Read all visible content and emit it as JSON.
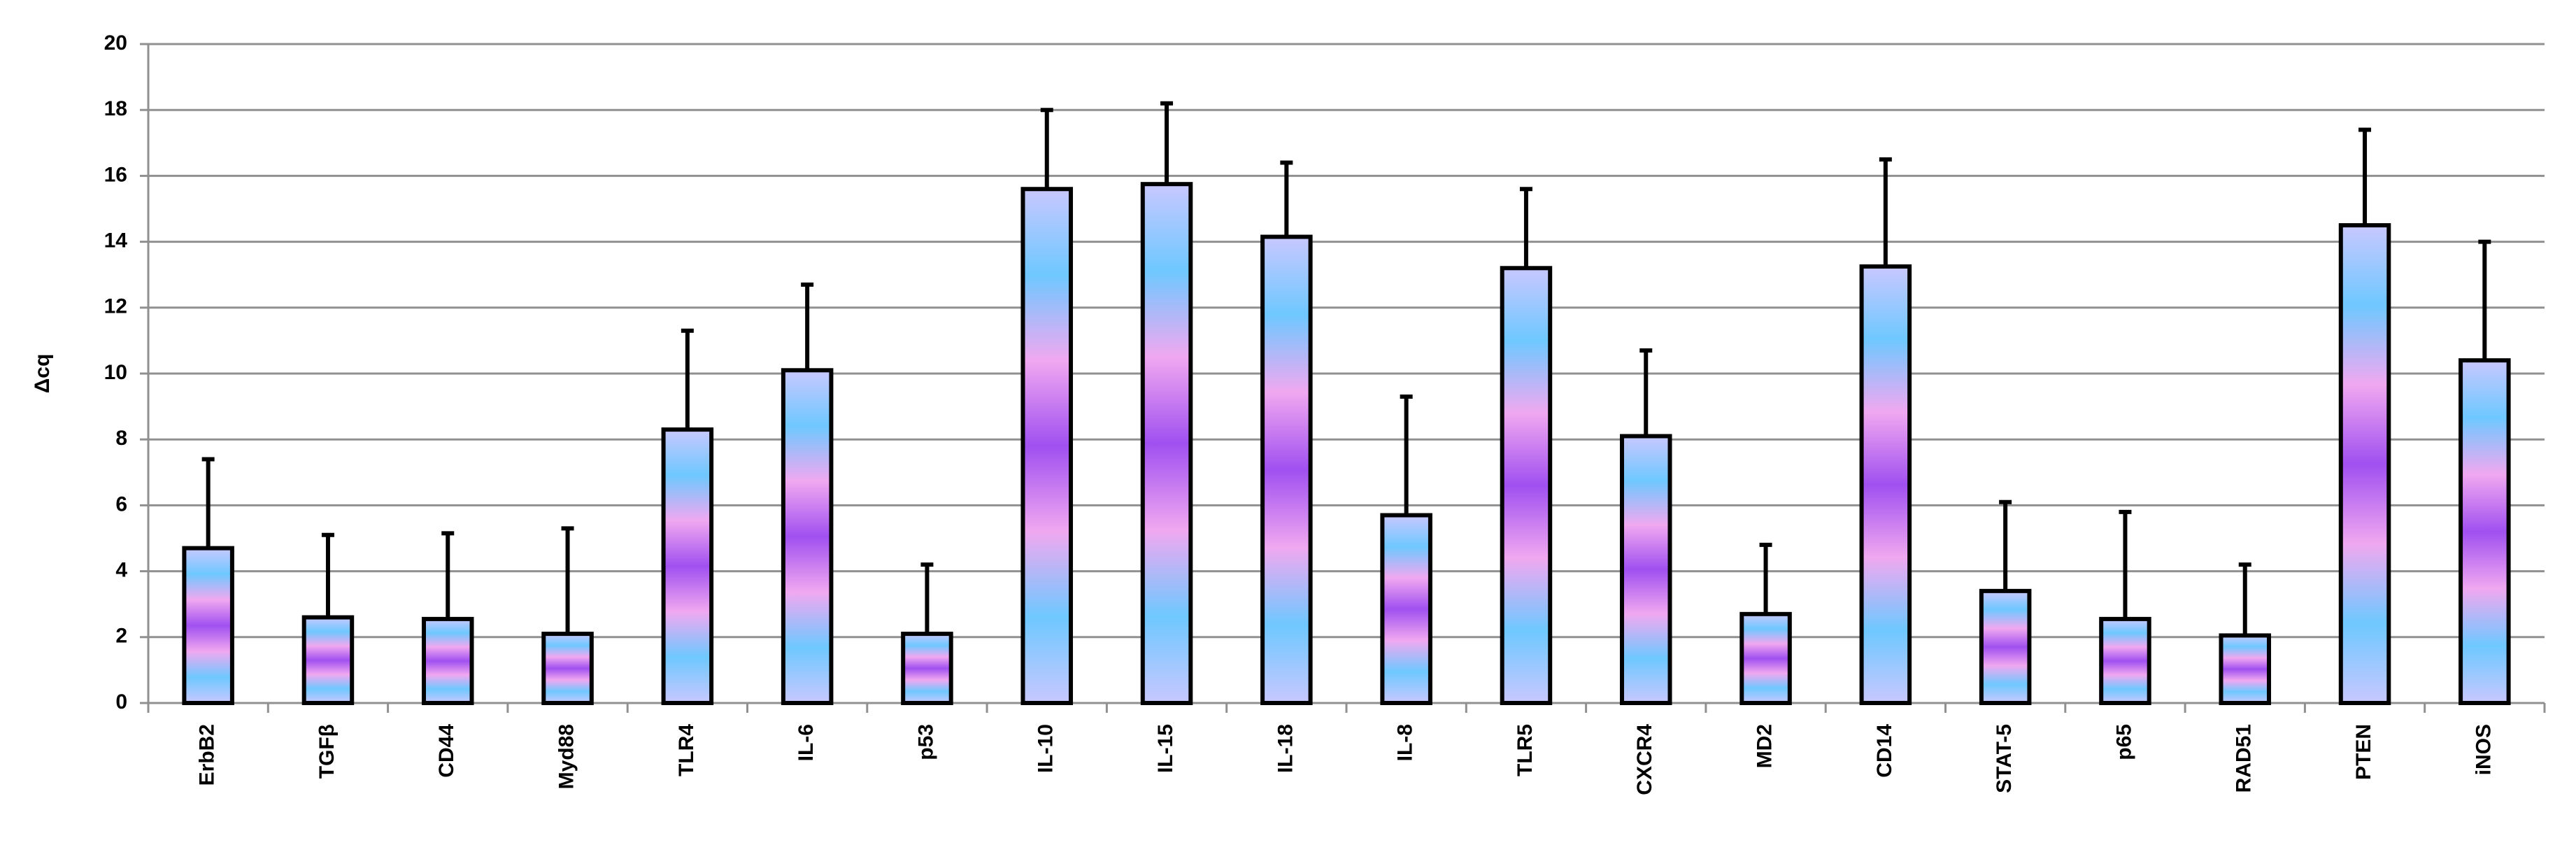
{
  "chart_data": {
    "type": "bar",
    "y_label": "Δcq",
    "categories": [
      "ErbB2",
      "TGFβ",
      "CD44",
      "Myd88",
      "TLR4",
      "IL-6",
      "p53",
      "IL-10",
      "IL-15",
      "IL-18",
      "IL-8",
      "TLR5",
      "CXCR4",
      "MD2",
      "CD14",
      "STAT-5",
      "p65",
      "RAD51",
      "PTEN",
      "iNOS"
    ],
    "values": [
      4.7,
      2.6,
      2.55,
      2.1,
      8.3,
      10.1,
      2.1,
      15.6,
      15.75,
      14.15,
      5.7,
      13.2,
      8.1,
      2.7,
      13.25,
      3.4,
      2.55,
      2.05,
      14.5,
      10.4
    ],
    "errors": [
      2.7,
      2.5,
      2.6,
      3.2,
      3.0,
      2.6,
      2.1,
      2.4,
      2.45,
      2.25,
      3.6,
      2.4,
      2.6,
      2.1,
      3.25,
      2.7,
      3.25,
      2.15,
      2.9,
      3.6
    ],
    "colors": [
      "#c8c8ff",
      "#6ec8ff",
      "#f0a8f0",
      "#a050f0",
      "#f0a8f0",
      "#6ec8ff",
      "#c8c8ff"
    ],
    "ylim": [
      0,
      20
    ],
    "yticks": [
      0,
      2,
      4,
      6,
      8,
      10,
      12,
      14,
      16,
      18,
      20
    ],
    "grid": true
  }
}
